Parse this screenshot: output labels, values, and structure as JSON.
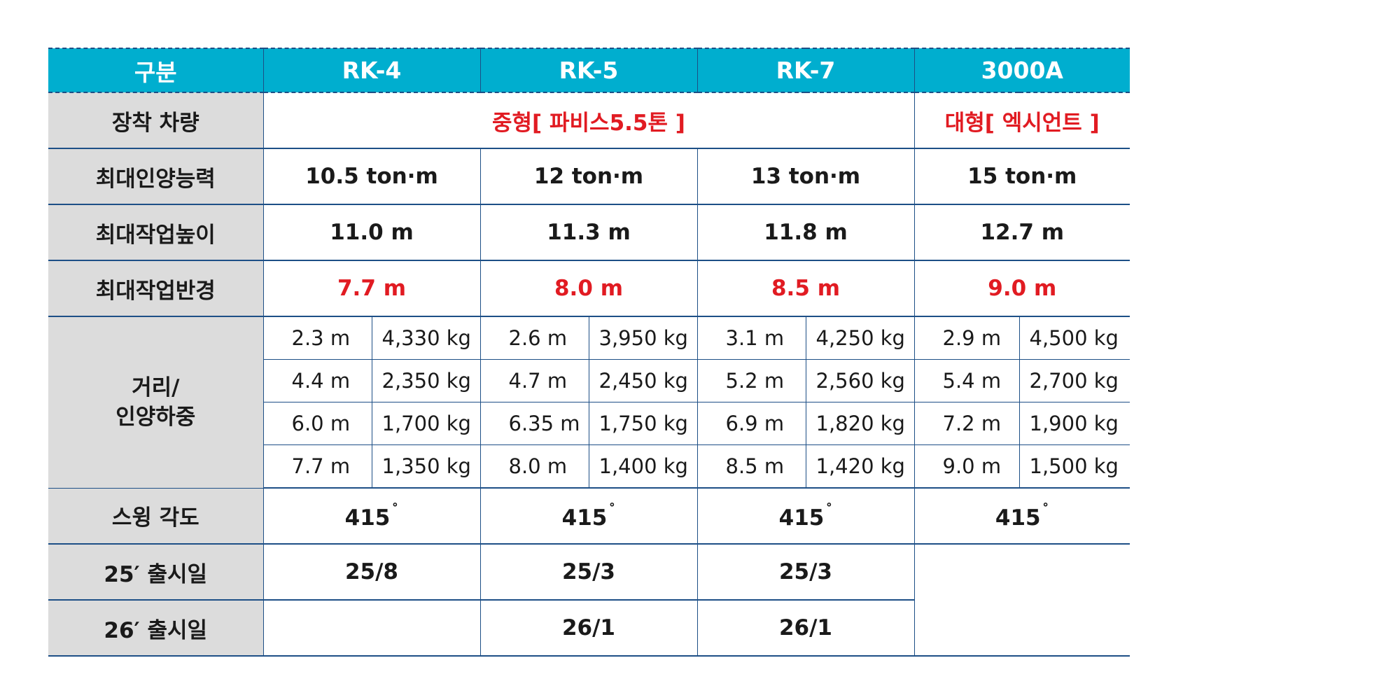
{
  "header": [
    "구분",
    "RK-4",
    "RK-5",
    "RK-7",
    "3000A"
  ],
  "rows": {
    "mount": {
      "label": "장착 차량",
      "medium": "중형[ 파비스5.5톤 ]",
      "large": "대형[ 엑시언트 ]"
    },
    "max_capacity": {
      "label": "최대인양능력",
      "values": [
        "10.5 ton·m",
        "12 ton·m",
        "13 ton·m",
        "15 ton·m"
      ]
    },
    "max_height": {
      "label": "최대작업높이",
      "values": [
        "11.0 m",
        "11.3 m",
        "11.8 m",
        "12.7 m"
      ]
    },
    "max_radius": {
      "label": "최대작업반경",
      "values": [
        "7.7 m",
        "8.0 m",
        "8.5 m",
        "9.0 m"
      ]
    },
    "load_chart": {
      "label_line1": "거리/",
      "label_line2": "인양하중",
      "rows": [
        [
          [
            "2.3 m",
            "4,330 kg"
          ],
          [
            "2.6 m",
            "3,950 kg"
          ],
          [
            "3.1 m",
            "4,250 kg"
          ],
          [
            "2.9 m",
            "4,500 kg"
          ]
        ],
        [
          [
            "4.4 m",
            "2,350 kg"
          ],
          [
            "4.7 m",
            "2,450 kg"
          ],
          [
            "5.2 m",
            "2,560 kg"
          ],
          [
            "5.4 m",
            "2,700 kg"
          ]
        ],
        [
          [
            "6.0 m",
            "1,700 kg"
          ],
          [
            "6.35 m",
            "1,750 kg"
          ],
          [
            "6.9 m",
            "1,820 kg"
          ],
          [
            "7.2 m",
            "1,900 kg"
          ]
        ],
        [
          [
            "7.7 m",
            "1,350 kg"
          ],
          [
            "8.0 m",
            "1,400 kg"
          ],
          [
            "8.5 m",
            "1,420 kg"
          ],
          [
            "9.0 m",
            "1,500 kg"
          ]
        ]
      ]
    },
    "swing": {
      "label": "스윙 각도",
      "value": "415",
      "unit": "˚"
    },
    "release_25": {
      "label": "25′ 출시일",
      "values": [
        "25/8",
        "25/3",
        "25/3"
      ]
    },
    "release_26": {
      "label": "26′ 출시일",
      "values": [
        "",
        "26/1",
        "26/1"
      ]
    }
  },
  "colors": {
    "header_bg": "#00aecf",
    "label_bg": "#dcdcdc",
    "grid": "#1d4f86",
    "highlight": "#e11b22"
  }
}
